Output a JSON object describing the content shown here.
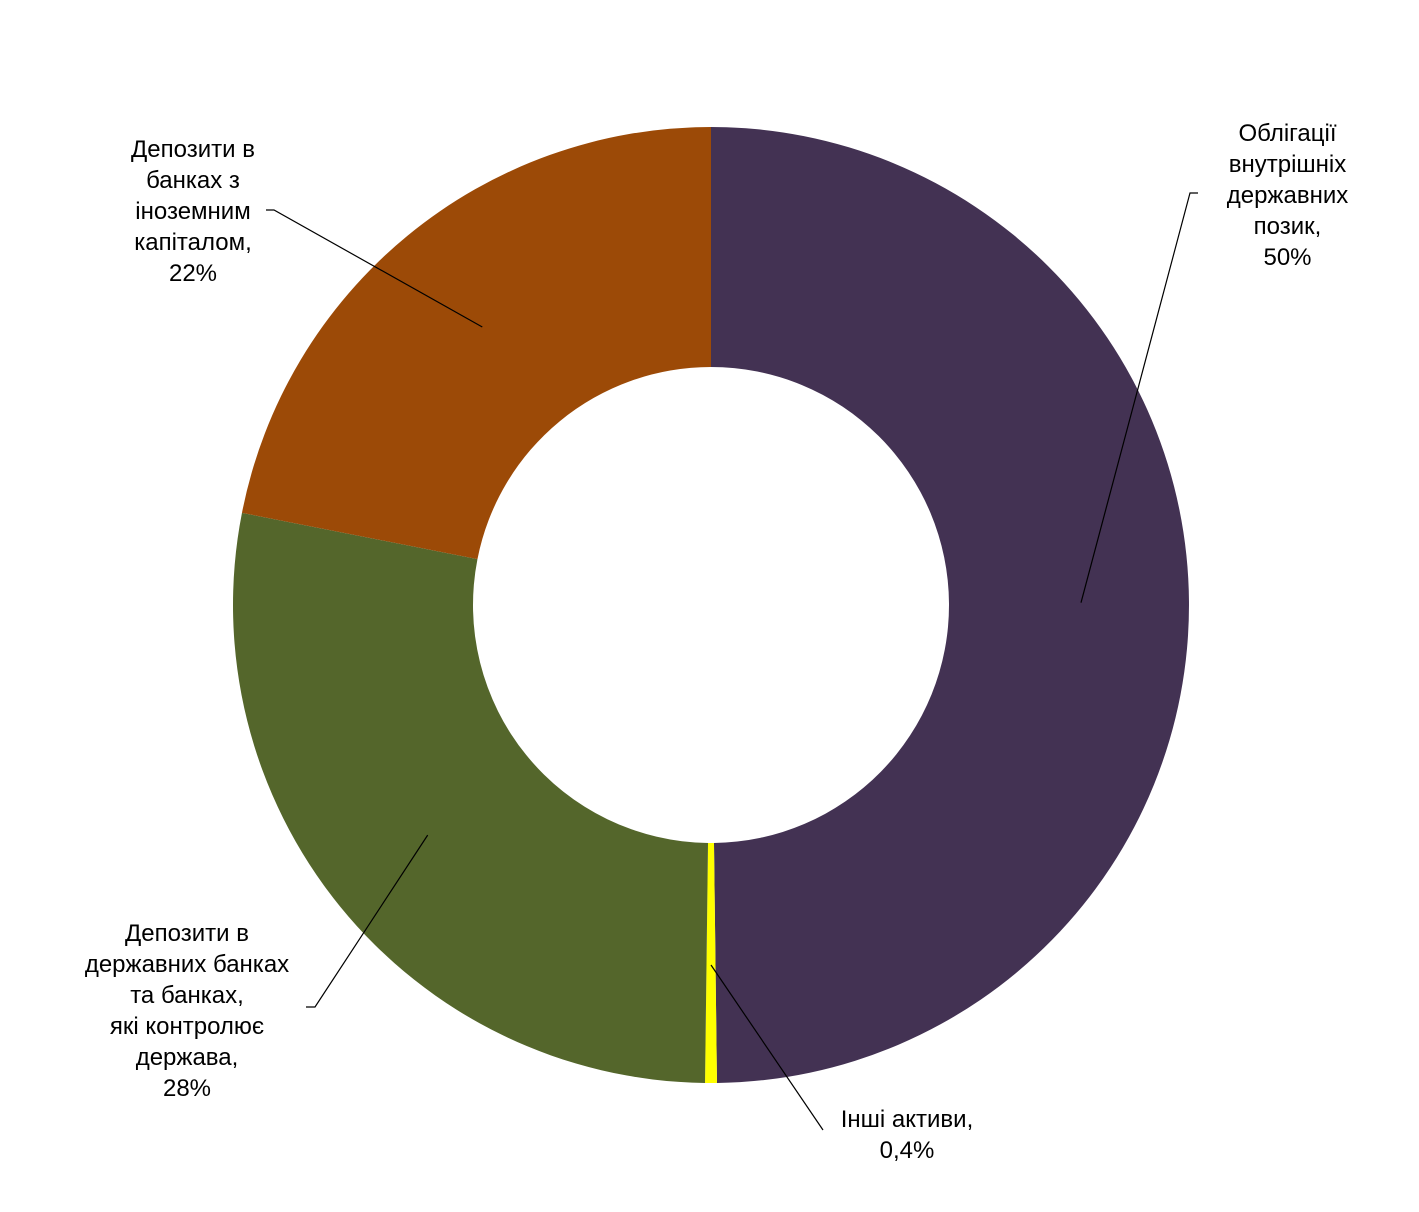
{
  "chart_data": {
    "type": "pie",
    "donut": true,
    "slices": [
      {
        "label_lines": [
          "Облігації",
          "внутрішніх",
          "державних",
          "позик,"
        ],
        "value_text": "50%",
        "value": 50,
        "color": "#433253"
      },
      {
        "label_lines": [
          "Інші активи,"
        ],
        "value_text": "0,4%",
        "value": 0.4,
        "color": "#ffff00"
      },
      {
        "label_lines": [
          "Депозити в",
          "державних банках",
          "та банках,",
          "які контролює",
          "держава,"
        ],
        "value_text": "28%",
        "value": 28,
        "color": "#54662b"
      },
      {
        "label_lines": [
          "Депозити в",
          "банках з",
          "іноземним",
          "капіталом,"
        ],
        "value_text": "22%",
        "value": 22,
        "color": "#9c4a07"
      }
    ]
  }
}
